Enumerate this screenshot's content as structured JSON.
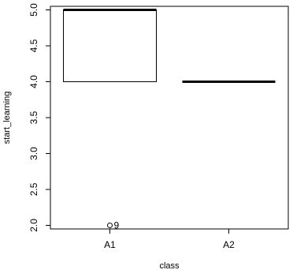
{
  "chart_data": {
    "type": "boxplot",
    "title": "",
    "xlabel": "class",
    "ylabel": "start_learning",
    "ylim": [
      1.95,
      5.05
    ],
    "yticks": [
      "2.0",
      "2.5",
      "3.0",
      "3.5",
      "4.0",
      "4.5",
      "5.0"
    ],
    "categories": [
      "A1",
      "A2"
    ],
    "boxes": [
      {
        "category": "A1",
        "q1": 4.0,
        "median": 5.0,
        "q3": 5.0,
        "whisker_low": 4.0,
        "whisker_high": 5.0
      },
      {
        "category": "A2",
        "q1": 4.0,
        "median": 4.0,
        "q3": 4.0,
        "whisker_low": 4.0,
        "whisker_high": 4.0
      }
    ],
    "outliers": [
      {
        "category": "A1",
        "y": 2.0,
        "label": "9"
      }
    ],
    "grid": false
  }
}
